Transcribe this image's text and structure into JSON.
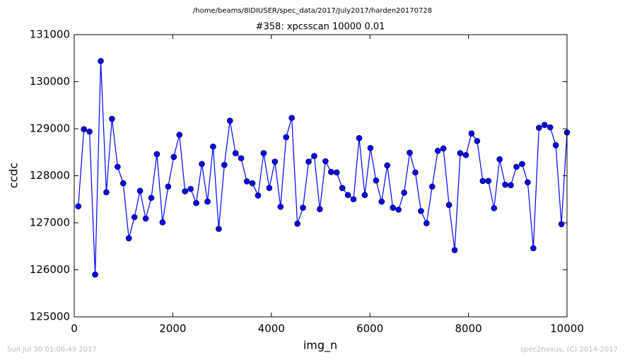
{
  "chart_data": {
    "type": "line",
    "suptitle": "/home/beams/8IDIUSER/spec_data/2017/July2017/harden20170728",
    "title": "#358: xpcsscan 10000 0.01",
    "xlabel": "img_n",
    "ylabel": "ccdc",
    "footer_left": "Sun Jul 30 01:06:49 2017",
    "footer_right": "spec2nexus, (C) 2014-2017",
    "color": "#0000ff",
    "marker": true,
    "xlim": [
      0,
      10000
    ],
    "xticks": [
      0,
      2000,
      4000,
      6000,
      8000,
      10000
    ],
    "ylim": [
      125000,
      131000
    ],
    "yticks": [
      125000,
      126000,
      127000,
      128000,
      129000,
      130000,
      131000
    ],
    "x": [
      82,
      196,
      310,
      424,
      538,
      652,
      766,
      880,
      994,
      1108,
      1222,
      1336,
      1450,
      1564,
      1678,
      1792,
      1906,
      2020,
      2134,
      2248,
      2362,
      2476,
      2590,
      2704,
      2818,
      2932,
      3046,
      3160,
      3274,
      3388,
      3502,
      3616,
      3730,
      3844,
      3958,
      4072,
      4186,
      4300,
      4414,
      4528,
      4642,
      4756,
      4870,
      4984,
      5098,
      5212,
      5326,
      5440,
      5554,
      5668,
      5782,
      5896,
      6010,
      6124,
      6238,
      6352,
      6466,
      6580,
      6694,
      6808,
      6922,
      7036,
      7150,
      7264,
      7378,
      7492,
      7606,
      7720,
      7834,
      7948,
      8062,
      8176,
      8290,
      8404,
      8518,
      8632,
      8746,
      8860,
      8974,
      9088,
      9202,
      9316,
      9430,
      9544,
      9658,
      9772,
      9886,
      10000
    ],
    "values": [
      127350,
      128990,
      128940,
      125900,
      130440,
      127650,
      129210,
      128190,
      127840,
      126670,
      127120,
      127680,
      127090,
      127530,
      128460,
      127010,
      127770,
      128400,
      128870,
      127670,
      127720,
      127420,
      128250,
      127450,
      128620,
      126870,
      128230,
      129170,
      128480,
      128370,
      127880,
      127840,
      127580,
      128480,
      127740,
      128300,
      127340,
      128820,
      129230,
      126980,
      127320,
      128300,
      128420,
      127290,
      128310,
      128080,
      128070,
      127740,
      127590,
      127500,
      128800,
      127590,
      128590,
      127900,
      127450,
      128220,
      127320,
      127280,
      127640,
      128490,
      128070,
      127250,
      126990,
      127770,
      128530,
      128580,
      127380,
      126420,
      128480,
      128440,
      128900,
      128740,
      127890,
      127890,
      127310,
      128350,
      127810,
      127800,
      128190,
      128250,
      127860,
      126460,
      129020,
      129080,
      129030,
      128650,
      126970,
      128920
    ]
  }
}
